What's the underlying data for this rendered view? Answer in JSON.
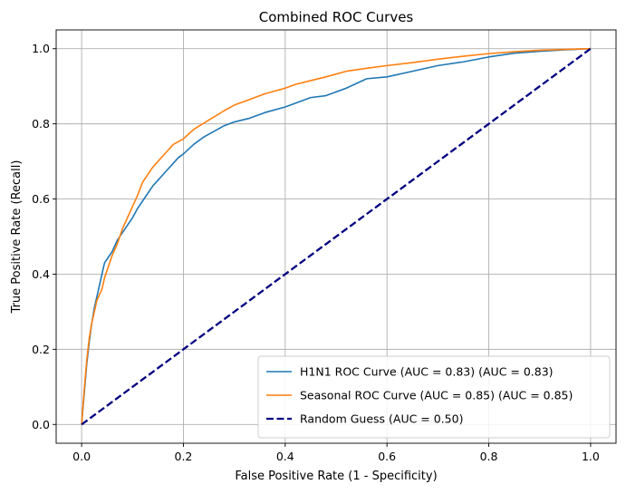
{
  "chart_data": {
    "type": "line",
    "title": "Combined ROC Curves",
    "xlabel": "False Positive Rate (1 - Specificity)",
    "ylabel": "True Positive Rate (Recall)",
    "xlim": [
      -0.05,
      1.05
    ],
    "ylim": [
      -0.05,
      1.05
    ],
    "xticks": [
      "0.0",
      "0.2",
      "0.4",
      "0.6",
      "0.8",
      "1.0"
    ],
    "yticks": [
      "0.0",
      "0.2",
      "0.4",
      "0.6",
      "0.8",
      "1.0"
    ],
    "grid": true,
    "legend_position": "lower-right",
    "series": [
      {
        "name": "H1N1 ROC Curve (AUC = 0.83) (AUC = 0.83)",
        "color": "#1f77b4",
        "style": "solid",
        "x": [
          0,
          0.005,
          0.01,
          0.015,
          0.02,
          0.025,
          0.03,
          0.035,
          0.04,
          0.045,
          0.05,
          0.06,
          0.07,
          0.08,
          0.09,
          0.1,
          0.11,
          0.12,
          0.13,
          0.14,
          0.15,
          0.16,
          0.17,
          0.18,
          0.19,
          0.2,
          0.22,
          0.24,
          0.26,
          0.28,
          0.3,
          0.33,
          0.36,
          0.4,
          0.42,
          0.45,
          0.48,
          0.52,
          0.56,
          0.6,
          0.65,
          0.7,
          0.75,
          0.8,
          0.85,
          0.9,
          0.95,
          1.0
        ],
        "y": [
          0,
          0.08,
          0.16,
          0.22,
          0.27,
          0.31,
          0.34,
          0.37,
          0.4,
          0.43,
          0.44,
          0.46,
          0.49,
          0.51,
          0.53,
          0.55,
          0.575,
          0.595,
          0.615,
          0.635,
          0.65,
          0.665,
          0.68,
          0.695,
          0.71,
          0.72,
          0.745,
          0.765,
          0.78,
          0.795,
          0.805,
          0.815,
          0.83,
          0.845,
          0.855,
          0.87,
          0.875,
          0.895,
          0.92,
          0.925,
          0.94,
          0.955,
          0.965,
          0.978,
          0.988,
          0.993,
          0.997,
          1.0
        ]
      },
      {
        "name": "Seasonal ROC Curve (AUC = 0.85) (AUC = 0.85)",
        "color": "#ff7f0e",
        "style": "solid",
        "x": [
          0,
          0.005,
          0.01,
          0.015,
          0.02,
          0.025,
          0.03,
          0.035,
          0.04,
          0.045,
          0.05,
          0.06,
          0.07,
          0.08,
          0.09,
          0.1,
          0.11,
          0.12,
          0.13,
          0.14,
          0.15,
          0.16,
          0.17,
          0.18,
          0.2,
          0.22,
          0.25,
          0.28,
          0.3,
          0.33,
          0.36,
          0.4,
          0.42,
          0.45,
          0.48,
          0.52,
          0.56,
          0.6,
          0.65,
          0.7,
          0.75,
          0.8,
          0.85,
          0.9,
          0.95,
          1.0
        ],
        "y": [
          0,
          0.09,
          0.17,
          0.23,
          0.27,
          0.3,
          0.33,
          0.345,
          0.36,
          0.39,
          0.41,
          0.45,
          0.48,
          0.52,
          0.55,
          0.58,
          0.61,
          0.645,
          0.665,
          0.685,
          0.7,
          0.715,
          0.73,
          0.745,
          0.76,
          0.785,
          0.81,
          0.835,
          0.85,
          0.865,
          0.88,
          0.895,
          0.905,
          0.915,
          0.925,
          0.94,
          0.948,
          0.955,
          0.963,
          0.972,
          0.98,
          0.987,
          0.992,
          0.996,
          0.998,
          1.0
        ]
      },
      {
        "name": "Random Guess (AUC = 0.50)",
        "color": "#000080",
        "style": "dashed",
        "x": [
          0,
          1
        ],
        "y": [
          0,
          1
        ]
      }
    ]
  }
}
